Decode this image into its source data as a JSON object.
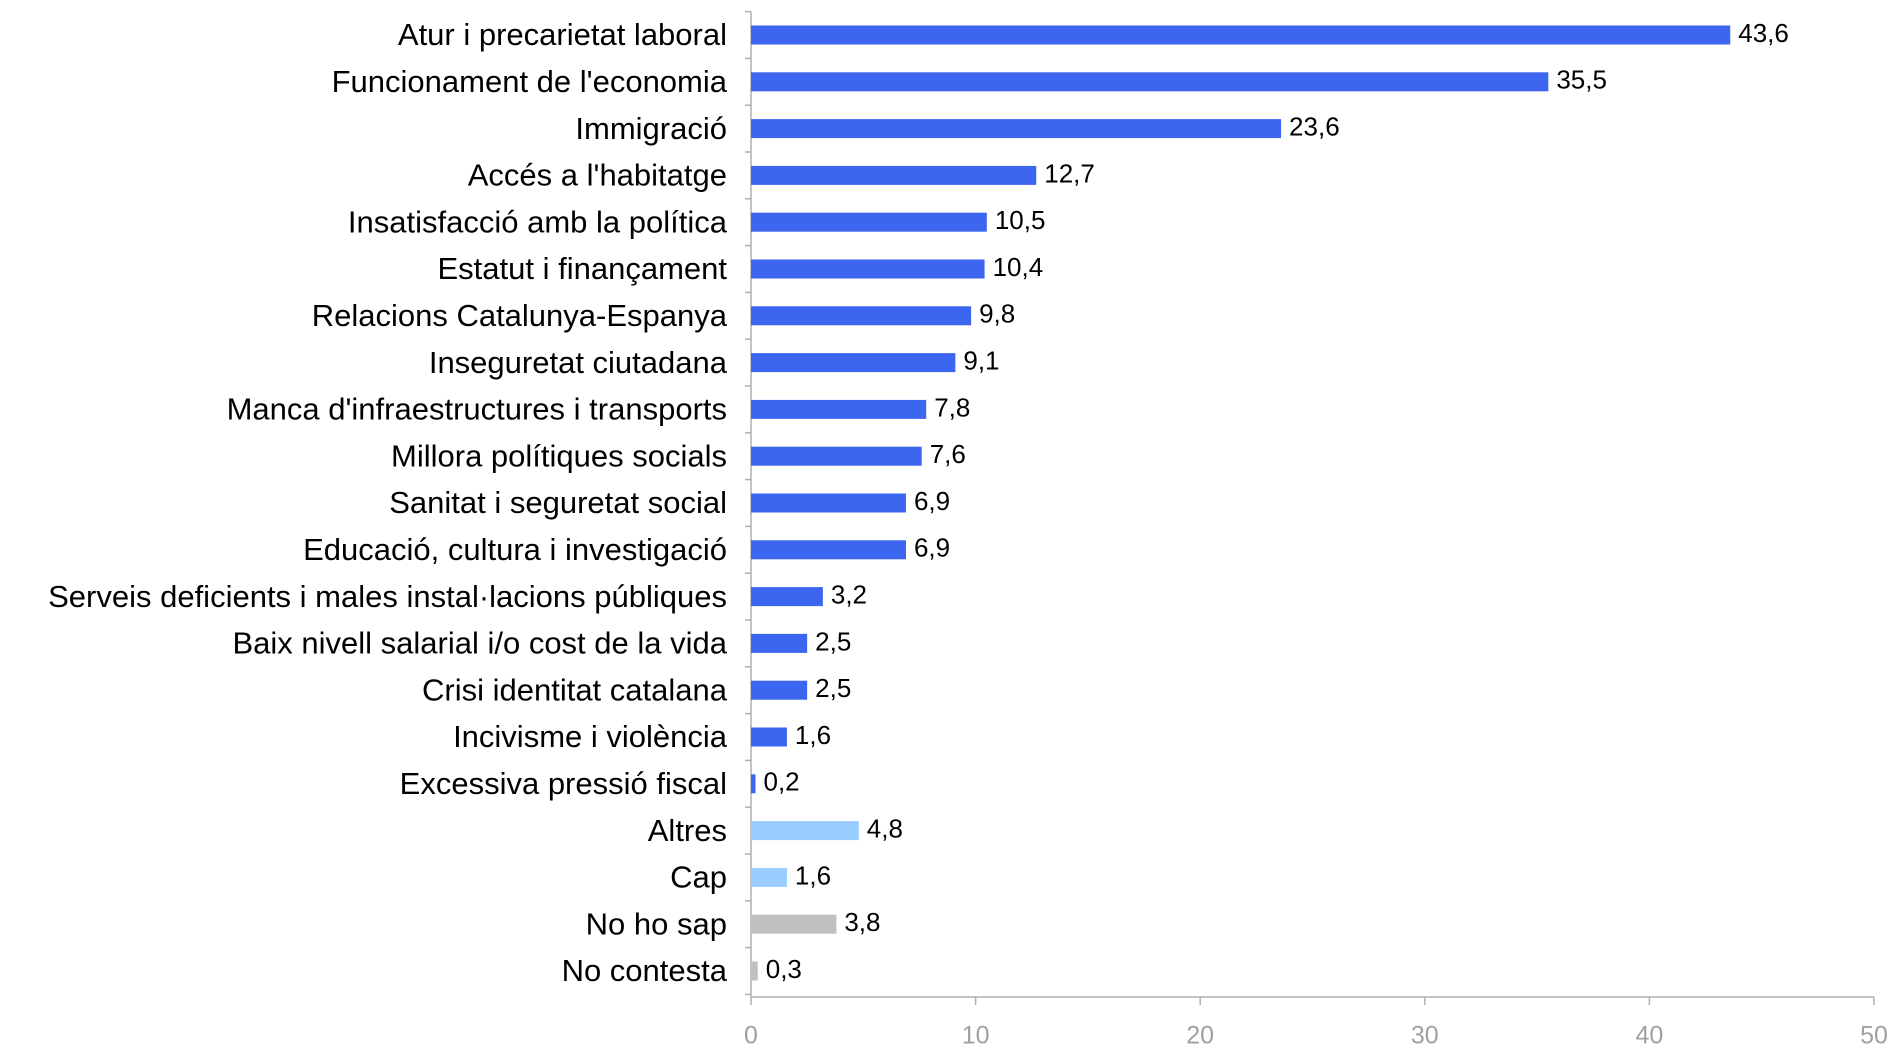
{
  "chart_data": {
    "type": "bar",
    "orientation": "horizontal",
    "categories": [
      "Atur i precarietat laboral",
      "Funcionament de l'economia",
      "Immigració",
      "Accés a l'habitatge",
      "Insatisfacció amb la política",
      "Estatut i finançament",
      "Relacions Catalunya-Espanya",
      "Inseguretat ciutadana",
      "Manca d'infraestructures i transports",
      "Millora polítiques socials",
      "Sanitat i seguretat social",
      "Educació, cultura i investigació",
      "Serveis deficients i males instal·lacions públiques",
      "Baix nivell salarial i/o cost de la vida",
      "Crisi identitat catalana",
      "Incivisme i violència",
      "Excessiva pressió fiscal",
      "Altres",
      "Cap",
      "No ho sap",
      "No contesta"
    ],
    "values": [
      43.6,
      35.5,
      23.6,
      12.7,
      10.5,
      10.4,
      9.8,
      9.1,
      7.8,
      7.6,
      6.9,
      6.9,
      3.2,
      2.5,
      2.5,
      1.6,
      0.2,
      4.8,
      1.6,
      3.8,
      0.3
    ],
    "value_labels": [
      "43,6",
      "35,5",
      "23,6",
      "12,7",
      "10,5",
      "10,4",
      "9,8",
      "9,1",
      "7,8",
      "7,6",
      "6,9",
      "6,9",
      "3,2",
      "2,5",
      "2,5",
      "1,6",
      "0,2",
      "4,8",
      "1,6",
      "3,8",
      "0,3"
    ],
    "colors": [
      "#3d66f0",
      "#3d66f0",
      "#3d66f0",
      "#3d66f0",
      "#3d66f0",
      "#3d66f0",
      "#3d66f0",
      "#3d66f0",
      "#3d66f0",
      "#3d66f0",
      "#3d66f0",
      "#3d66f0",
      "#3d66f0",
      "#3d66f0",
      "#3d66f0",
      "#3d66f0",
      "#3d66f0",
      "#99ccff",
      "#99ccff",
      "#c0c0c0",
      "#c0c0c0"
    ],
    "xlim": [
      0,
      50
    ],
    "xticks": [
      0,
      10,
      20,
      30,
      40,
      50
    ],
    "grid": false
  }
}
